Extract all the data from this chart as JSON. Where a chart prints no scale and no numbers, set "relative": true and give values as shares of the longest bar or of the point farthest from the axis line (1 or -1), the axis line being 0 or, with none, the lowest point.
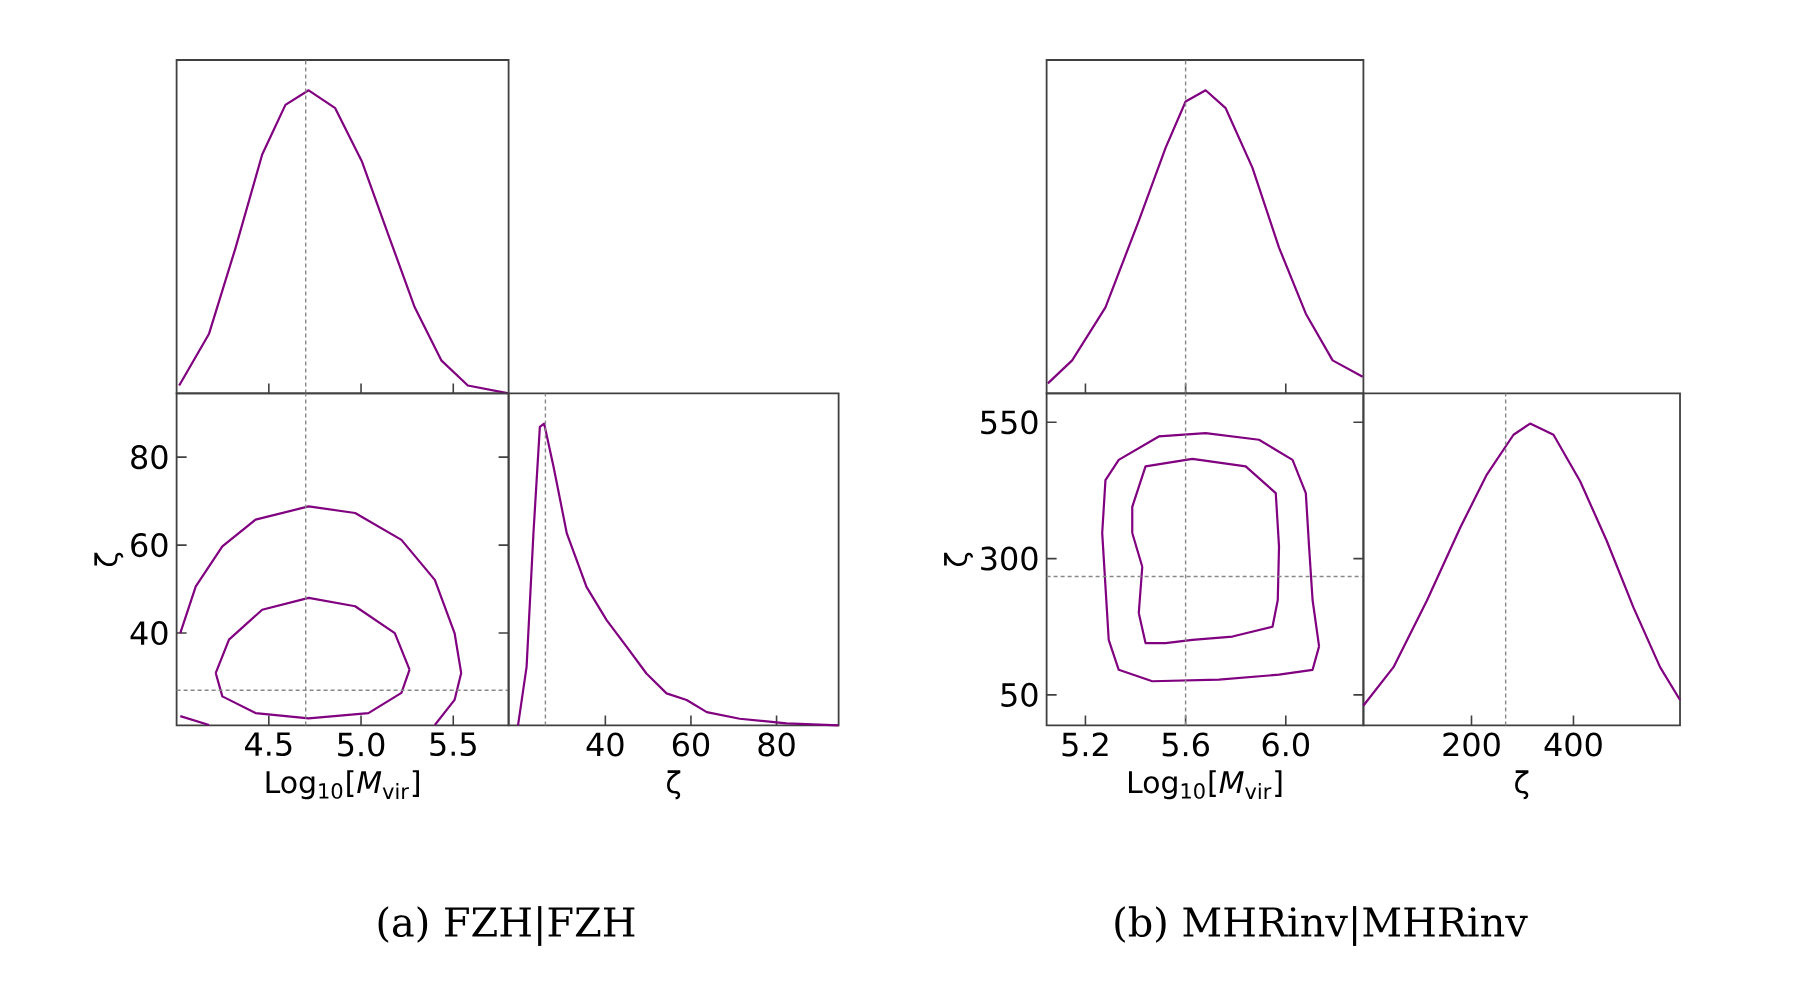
{
  "chart_data": [
    {
      "type": "line",
      "relative": true,
      "tick_labels": false,
      "xlim": [
        4.0,
        5.8
      ],
      "xticks": [
        4.5,
        5,
        5.5
      ],
      "series": [
        {
          "color": "#800080",
          "x": [
            4.014,
            4.176,
            4.32,
            4.464,
            4.59,
            4.716,
            4.86,
            5.004,
            5.147,
            5.291,
            5.435,
            5.579,
            5.8
          ],
          "values": [
            0.026,
            0.197,
            0.481,
            0.788,
            0.952,
            1,
            0.941,
            0.766,
            0.525,
            0.284,
            0.109,
            0.026,
            0
          ]
        }
      ],
      "ref_lines": [
        {
          "axis": "x",
          "value": 4.7,
          "color": "#888888",
          "line_style": "dashed"
        }
      ]
    },
    {
      "type": "line",
      "xlabel": "Log$_{10}$[*M*$_{vir}$]",
      "ylabel": "ζ",
      "xlim": [
        4.0,
        5.8
      ],
      "ylim": [
        19,
        94.5
      ],
      "xticks": [
        4.5,
        {
          "value": 5,
          "label": "5.0"
        },
        5.5
      ],
      "yticks": [
        40,
        60,
        80
      ],
      "annotations": [
        "(a) FZH|FZH"
      ],
      "series": [
        {
          "color": "#800080",
          "x": [
            4.02,
            4.104,
            4.248,
            4.428,
            4.716,
            4.968,
            5.219,
            5.4,
            5.507,
            5.543,
            5.507,
            5.4,
            null,
            4.02,
            4.176
          ],
          "values": [
            40,
            50.6,
            59.7,
            65.8,
            68.8,
            67.3,
            61.2,
            52.1,
            40,
            30.9,
            24.8,
            19.1,
            null,
            21.1,
            19.1
          ]
        },
        {
          "color": "#800080",
          "x": [
            4.212,
            4.284,
            4.464,
            4.716,
            4.968,
            5.183,
            5.263,
            null,
            5.263,
            5.219,
            5.04,
            4.716,
            4.428,
            4.248,
            4.212
          ],
          "values": [
            30.9,
            38.5,
            45.3,
            48.0,
            46.1,
            40,
            31.7,
            null,
            31.7,
            26.4,
            21.8,
            20.6,
            21.8,
            25.6,
            30.9
          ]
        }
      ],
      "ref_lines": [
        {
          "axis": "x",
          "value": 4.7,
          "color": "#888888",
          "line_style": "dashed"
        },
        {
          "axis": "y",
          "value": 27,
          "color": "#888888",
          "line_style": "dashed"
        }
      ]
    },
    {
      "type": "line",
      "relative": true,
      "tick_labels": "x",
      "xlabel": "ζ",
      "xlim": [
        17.4,
        94.5
      ],
      "xticks": [
        40,
        60,
        80
      ],
      "series": [
        {
          "color": "#800080",
          "x": [
            19.6,
            21.6,
            23.2,
            24.7,
            25.7,
            27.9,
            31.0,
            35.6,
            40.3,
            45.0,
            49.6,
            54.3,
            59.0,
            63.7,
            71.4,
            82.3,
            94.5
          ],
          "values": [
            0,
            0.194,
            0.636,
            0.989,
            1,
            0.857,
            0.636,
            0.459,
            0.349,
            0.26,
            0.172,
            0.106,
            0.084,
            0.044,
            0.022,
            0.007,
            0
          ]
        }
      ],
      "ref_lines": [
        {
          "axis": "x",
          "value": 26,
          "color": "#888888",
          "line_style": "dashed"
        }
      ]
    },
    {
      "type": "line",
      "relative": true,
      "tick_labels": false,
      "xlim": [
        5.045,
        6.31
      ],
      "xticks": [
        5.2,
        5.6,
        6
      ],
      "series": [
        {
          "color": "#800080",
          "x": [
            5.05,
            5.147,
            5.28,
            5.413,
            5.52,
            5.6,
            5.68,
            5.76,
            5.867,
            5.973,
            6.08,
            6.187,
            6.307
          ],
          "values": [
            0.033,
            0.109,
            0.284,
            0.569,
            0.81,
            0.963,
            1,
            0.941,
            0.744,
            0.481,
            0.263,
            0.109,
            0.055
          ]
        }
      ],
      "ref_lines": [
        {
          "axis": "x",
          "value": 5.6,
          "color": "#888888",
          "line_style": "dashed"
        }
      ]
    },
    {
      "type": "line",
      "xlabel": "Log$_{10}$[*M*$_{vir}$]",
      "ylabel": "ζ",
      "xlim": [
        5.045,
        6.31
      ],
      "ylim": [
        -6,
        603
      ],
      "xticks": [
        5.2,
        5.6,
        {
          "value": 6,
          "label": "6.0"
        }
      ],
      "yticks": [
        50,
        300,
        550
      ],
      "annotations": [
        "(b) MHRinv|MHRinv"
      ],
      "series": [
        {
          "color": "#800080",
          "x": [
            5.267,
            5.28,
            5.333,
            5.493,
            5.68,
            5.893,
            6.027,
            6.08,
            6.093,
            6.107,
            6.133,
            null,
            6.133,
            6.107,
            5.973,
            5.733,
            5.467,
            5.333,
            5.293,
            5.28,
            5.267
          ],
          "values": [
            347,
            444,
            481,
            524,
            530,
            518,
            481,
            420,
            322,
            224,
            139,
            null,
            139,
            96,
            87,
            78,
            75,
            96,
            151,
            249,
            347
          ]
        },
        {
          "color": "#800080",
          "x": [
            5.387,
            5.387,
            5.44,
            5.627,
            5.84,
            5.96,
            5.973,
            null,
            5.973,
            5.968,
            5.947,
            5.787,
            5.627,
            5.52,
            5.44,
            5.413,
            null,
            5.413,
            5.427,
            null,
            5.427,
            5.387
          ],
          "values": [
            347,
            395,
            469,
            483,
            469,
            420,
            322,
            null,
            322,
            224,
            175,
            157,
            151,
            145,
            145,
            200,
            null,
            200,
            285,
            null,
            285,
            347
          ]
        }
      ],
      "ref_lines": [
        {
          "axis": "x",
          "value": 5.6,
          "color": "#888888",
          "line_style": "dashed"
        },
        {
          "axis": "y",
          "value": 267,
          "color": "#888888",
          "line_style": "dashed"
        }
      ]
    },
    {
      "type": "line",
      "relative": true,
      "tick_labels": "x",
      "xlabel": "ζ",
      "xlim": [
        -12,
        609
      ],
      "xticks": [
        200,
        400
      ],
      "series": [
        {
          "color": "#800080",
          "x": [
            -11.8,
            47,
            112.4,
            177.8,
            230.1,
            282.4,
            315,
            360.8,
            413.1,
            465.4,
            517.6,
            569.9,
            609
          ],
          "values": [
            0.066,
            0.193,
            0.413,
            0.655,
            0.831,
            0.963,
            1,
            0.963,
            0.809,
            0.611,
            0.391,
            0.193,
            0.084
          ]
        }
      ],
      "ref_lines": [
        {
          "axis": "x",
          "value": 267,
          "color": "#888888",
          "line_style": "dashed"
        }
      ]
    }
  ]
}
